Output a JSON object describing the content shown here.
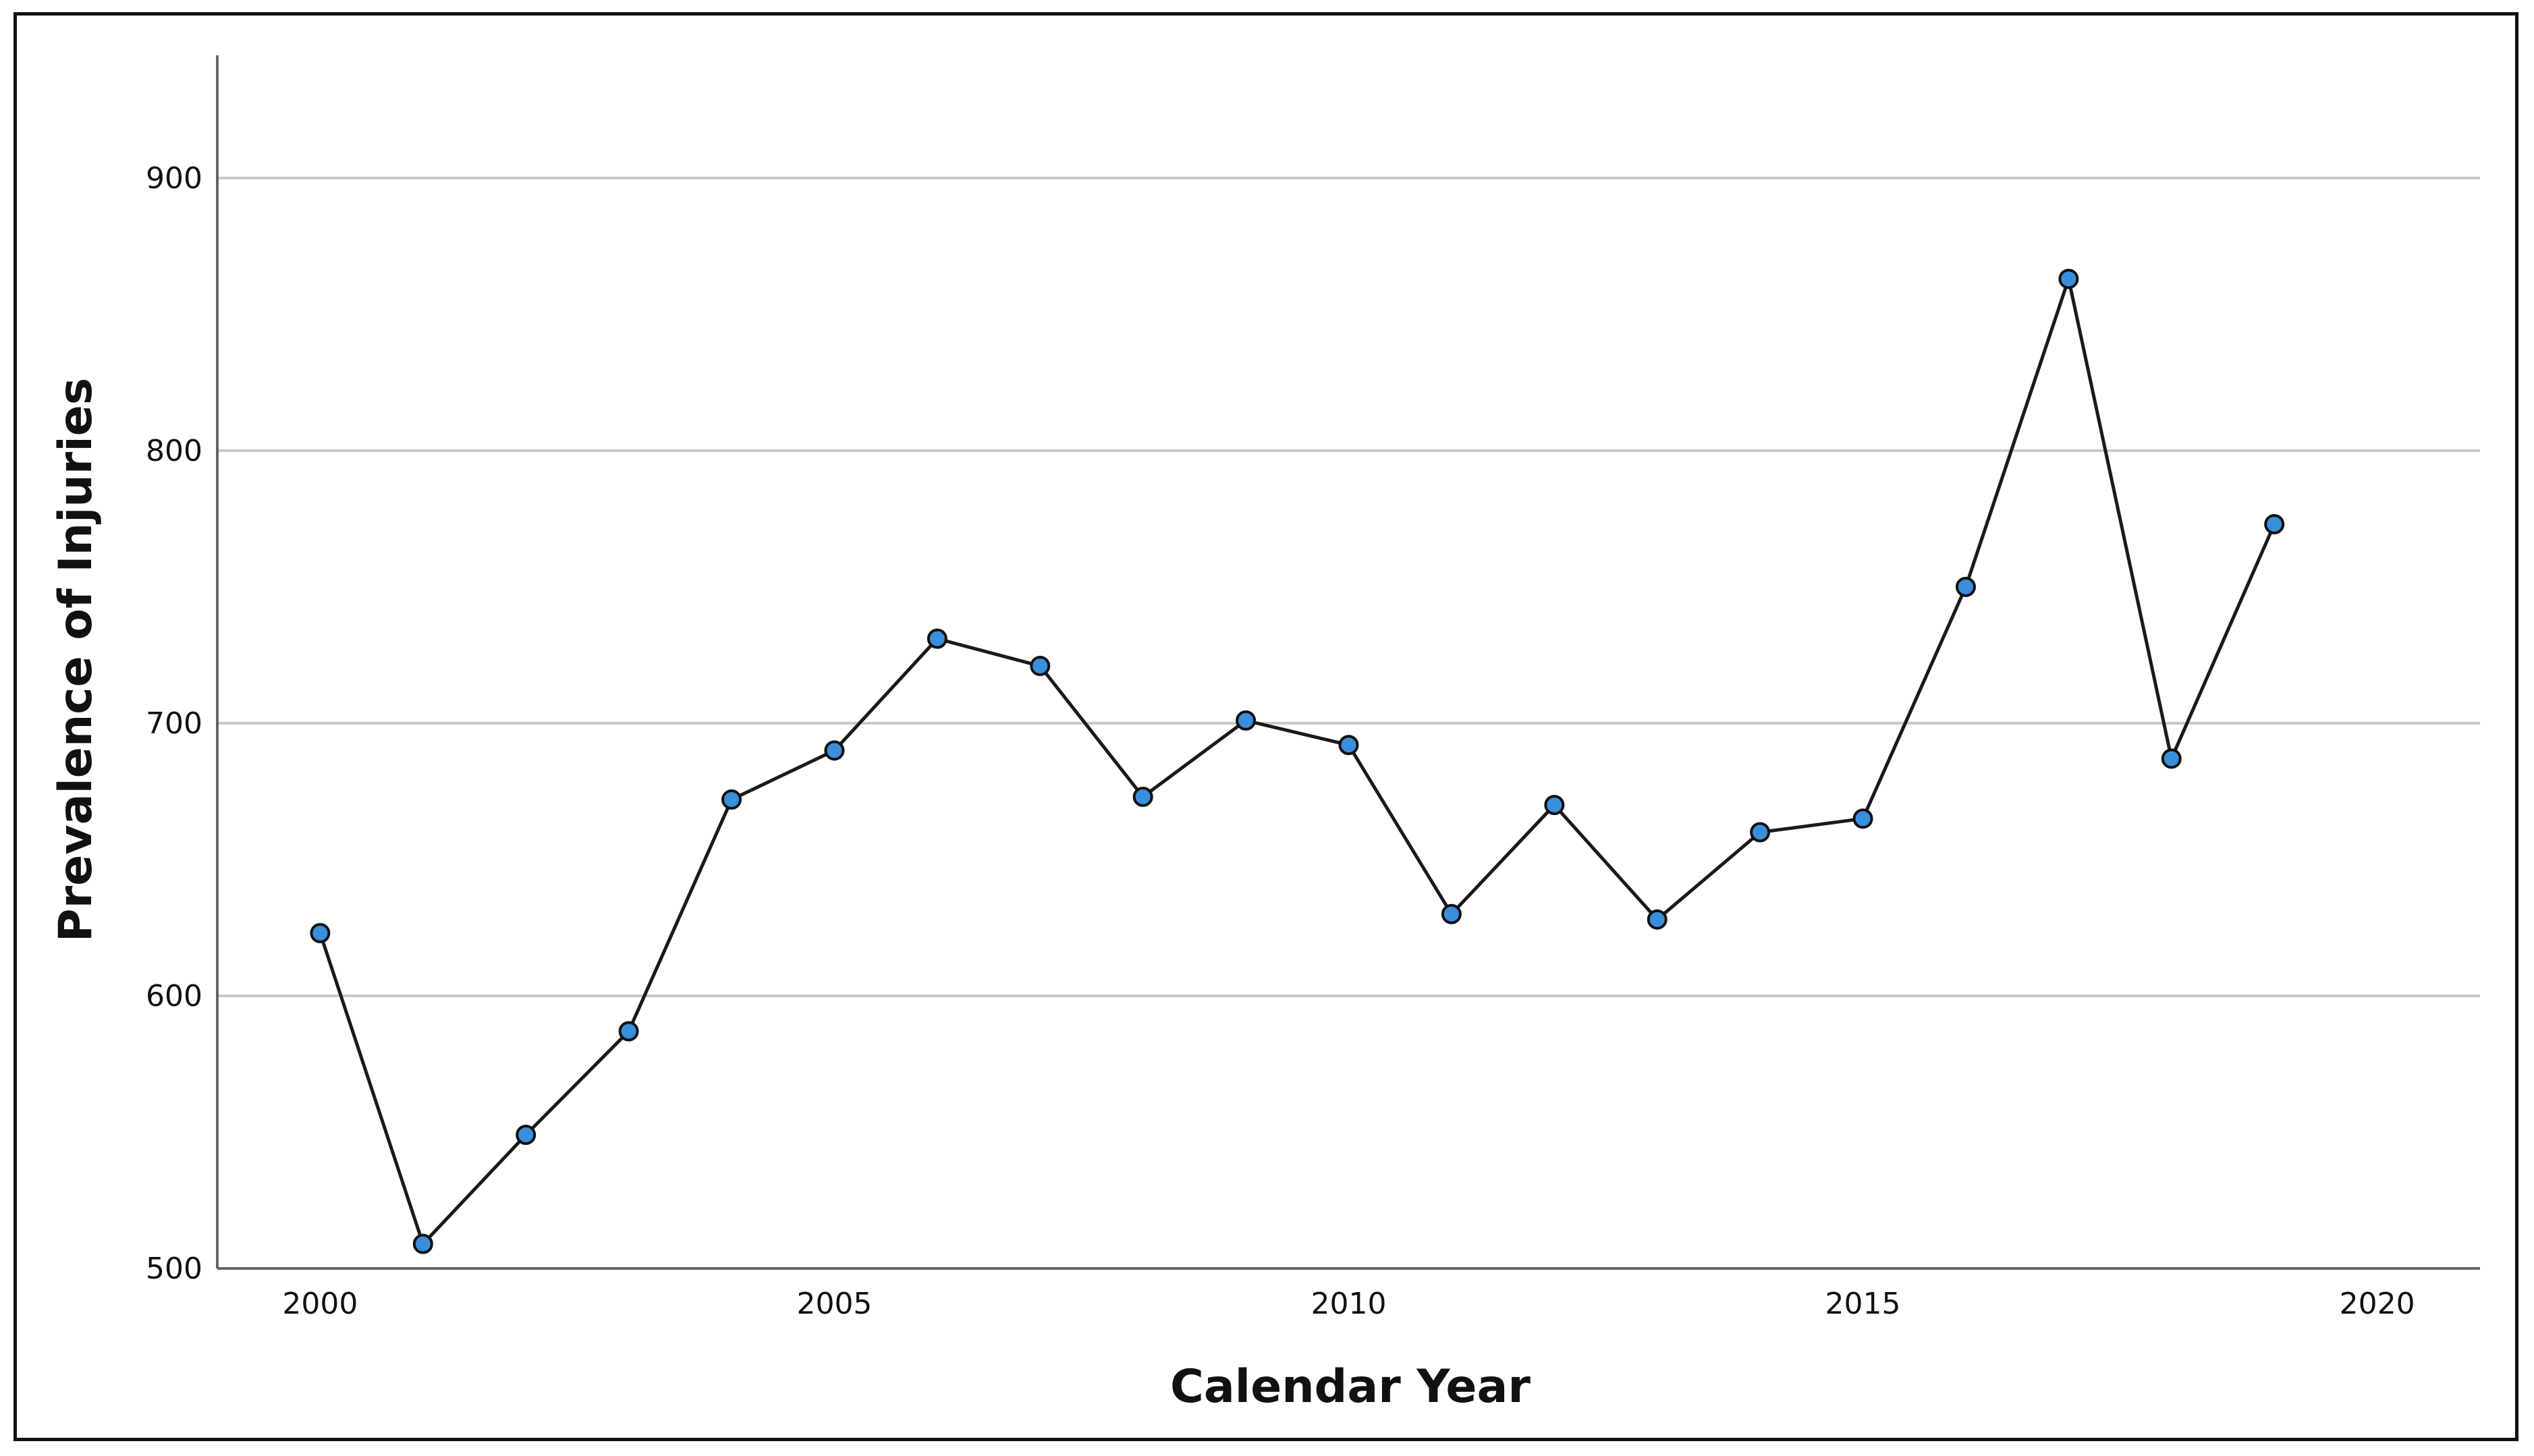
{
  "chart_data": {
    "type": "line",
    "title": "",
    "xlabel": "Calendar Year",
    "ylabel": "Prevalence of Injuries",
    "x": [
      2000,
      2001,
      2002,
      2003,
      2004,
      2005,
      2006,
      2007,
      2008,
      2009,
      2010,
      2011,
      2012,
      2013,
      2014,
      2015,
      2016,
      2017,
      2018,
      2019
    ],
    "series": [
      {
        "values": [
          623,
          509,
          549,
          587,
          672,
          690,
          731,
          721,
          673,
          701,
          692,
          630,
          670,
          628,
          660,
          665,
          750,
          863,
          687,
          773
        ]
      }
    ],
    "xlim": [
      1999,
      2021
    ],
    "ylim": [
      500,
      945
    ],
    "xticks": [
      2000,
      2005,
      2010,
      2015,
      2020
    ],
    "xtick_labels": [
      "2000",
      "2005",
      "2010",
      "2015",
      "2020"
    ],
    "yticks": [
      500,
      600,
      700,
      800,
      900
    ],
    "ytick_labels": [
      "500",
      "600",
      "700",
      "800",
      "900"
    ],
    "grid": "horizontal",
    "legend": "none",
    "colors": {
      "line": "#1a1a1a",
      "marker_fill": "#3a8fdc",
      "marker_edge": "#111111",
      "grid": "#c8c8c8",
      "axis": "#666666"
    }
  }
}
